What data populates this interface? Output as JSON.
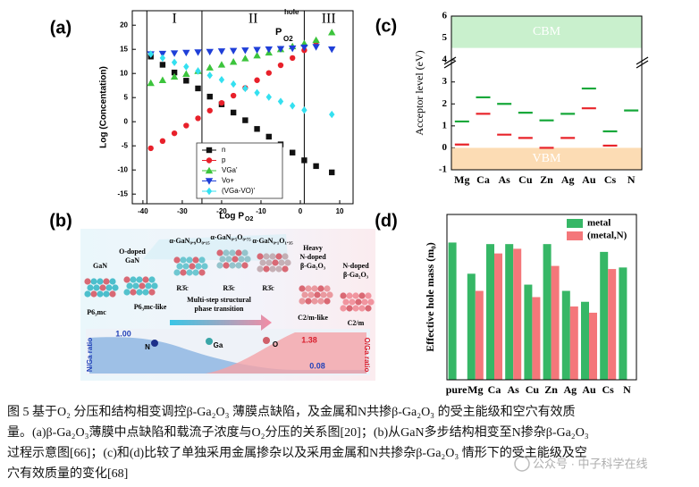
{
  "panels": {
    "a": "(a)",
    "b": "(b)",
    "c": "(c)",
    "d": "(d)"
  },
  "chart_data": [
    {
      "type": "scatter",
      "ylabel": "Log (Concentation)",
      "xlabel": "Log P",
      "xlabel_sub": "O2",
      "annotation": {
        "top": "hole",
        "main": "P",
        "sub": "O2"
      },
      "regions": [
        "I",
        "II",
        "III"
      ],
      "vlines": [
        -39,
        -25,
        1
      ],
      "x": [
        -38,
        -35,
        -32,
        -29,
        -26,
        -23,
        -20,
        -17,
        -14,
        -11,
        -8,
        -5,
        -2,
        1,
        4,
        8
      ],
      "xlim": [
        -42.7,
        13.4
      ],
      "xticks": [
        -40,
        -30,
        -20,
        -10,
        0,
        10
      ],
      "ylim": [
        -17,
        23
      ],
      "yticks": [
        -15,
        -10,
        -5,
        0,
        5,
        10,
        15,
        20
      ],
      "legend": "bottom",
      "series": [
        {
          "name": "n",
          "color": "#111111",
          "marker": "square",
          "values": [
            13.5,
            11.8,
            10.2,
            8.5,
            6.9,
            5.2,
            3.6,
            1.9,
            0.3,
            -1.5,
            -3.1,
            -4.7,
            -6.4,
            -8,
            -9.2,
            -10.5
          ]
        },
        {
          "name": "p",
          "color": "#e8202a",
          "marker": "circle",
          "values": [
            -5.5,
            -4,
            -2.4,
            -0.8,
            0.7,
            2.3,
            3.9,
            5.4,
            7,
            8.6,
            10.1,
            11.7,
            13.2,
            14.8,
            16.5,
            null
          ]
        },
        {
          "name": "VGa'",
          "color": "#3cc43c",
          "marker": "triangle-up",
          "values": [
            8,
            8.6,
            9.3,
            9.9,
            10.5,
            11.2,
            11.8,
            12.4,
            13.1,
            13.7,
            14.3,
            15,
            15.6,
            16.2,
            16.9,
            18.5
          ]
        },
        {
          "name": "Vo+",
          "color": "#1f3fd8",
          "marker": "triangle-down",
          "values": [
            14,
            14.1,
            14.2,
            14.3,
            14.4,
            14.5,
            14.6,
            14.7,
            14.8,
            14.9,
            15,
            15.1,
            15.2,
            15.4,
            15.5,
            15
          ]
        },
        {
          "name": "(VGa-VO)'",
          "color": "#34e0f0",
          "marker": "diamond",
          "values": [
            14,
            13.2,
            12.3,
            11.4,
            10.5,
            9.6,
            8.7,
            7.8,
            6.9,
            6,
            5.1,
            4.2,
            3.3,
            2.4,
            null,
            1.5
          ]
        }
      ]
    },
    {
      "type": "level",
      "ylabel": "Acceptor level (eV)",
      "categories": [
        "Mg",
        "Ca",
        "As",
        "Cu",
        "Zn",
        "Ag",
        "Au",
        "Cs",
        "N"
      ],
      "ylim": [
        -1,
        6
      ],
      "yticks": [
        -1,
        0,
        1,
        2,
        3,
        4,
        5,
        6
      ],
      "bands": [
        {
          "name": "CBM",
          "from": 4.55,
          "to": 6,
          "color": "#c9f0cd"
        },
        {
          "name": "VBM",
          "from": -1,
          "to": 0,
          "color": "#fcdcb4"
        }
      ],
      "series": [
        {
          "color": "#16a83a",
          "values": [
            1.2,
            2.3,
            2.0,
            1.6,
            1.25,
            1.55,
            2.7,
            0.75,
            1.7
          ]
        },
        {
          "color": "#e8242a",
          "values": [
            0.15,
            1.55,
            0.6,
            0.45,
            0.0,
            0.45,
            1.8,
            0.1,
            null
          ]
        }
      ]
    },
    {
      "type": "bar",
      "ylabel": "Effective hole mass (m₀)",
      "categories": [
        "pure",
        "Mg",
        "Ca",
        "As",
        "Cu",
        "Zn",
        "Ag",
        "Au",
        "Cs",
        "N"
      ],
      "ylim": [
        0,
        5.3
      ],
      "legend": "top-right",
      "series": [
        {
          "name": "metal",
          "color": "#36b766",
          "values": [
            4.4,
            3.4,
            4.35,
            4.35,
            3.05,
            4.35,
            2.85,
            2.5,
            4.1,
            3.6
          ]
        },
        {
          "name": "(metal,N)",
          "color": "#f4777a",
          "values": [
            null,
            2.85,
            4.05,
            4.2,
            2.65,
            3.65,
            2.35,
            2.15,
            3.55,
            null
          ]
        }
      ]
    }
  ],
  "diagram_b": {
    "structures": [
      {
        "name": [
          "GaN"
        ],
        "group": "P6₃mc"
      },
      {
        "name": [
          "O-doped",
          "GaN"
        ],
        "group": "P6₃mc-like"
      },
      {
        "name": [
          "α-GaN₀.₉O₀.₁₅"
        ],
        "group": "R3̄c"
      },
      {
        "name": [
          "α-GaN₀.₅O₀.₇₅"
        ],
        "group": "R3̄c"
      },
      {
        "name": [
          "α-GaN₀.₁O₁.₃₅"
        ],
        "group": "R3̄c"
      },
      {
        "name": [
          "Heavy",
          "N-doped",
          "β-Ga₂O₃"
        ],
        "group": "C2/m-like"
      },
      {
        "name": [
          "N-doped",
          "β-Ga₂O₃"
        ],
        "group": "C2/m"
      }
    ],
    "transition": [
      "Multi-step structural",
      "phase transition"
    ],
    "ratio": {
      "n_start": "1.00",
      "o_end": "1.38",
      "n_end": "0.08",
      "atoms": [
        "N",
        "Ga",
        "O"
      ],
      "n_axis": "N/Ga ratio",
      "o_axis": "O/Ga ratio"
    }
  },
  "caption": {
    "lines": [
      "图 5  基于O₂ 分压和结构相变调控β-Ga₂O₃ 薄膜点缺陷，及金属和N共掺β-Ga₂O₃ 的受主能级和空穴有效质",
      "量。(a)β-Ga₂O₃薄膜中点缺陷和载流子浓度与O₂分压的关系图[20]；(b)从GaN多步结构相变至N掺杂β-Ga₂O₃",
      "过程示意图[66]；(c)和(d)比较了单独采用金属掺杂以及采用金属和N共掺杂β-Ga₂O₃ 情形下的受主能级及空",
      "穴有效质量的变化[68]"
    ]
  },
  "watermark": "公众号 · 中子科学在线"
}
